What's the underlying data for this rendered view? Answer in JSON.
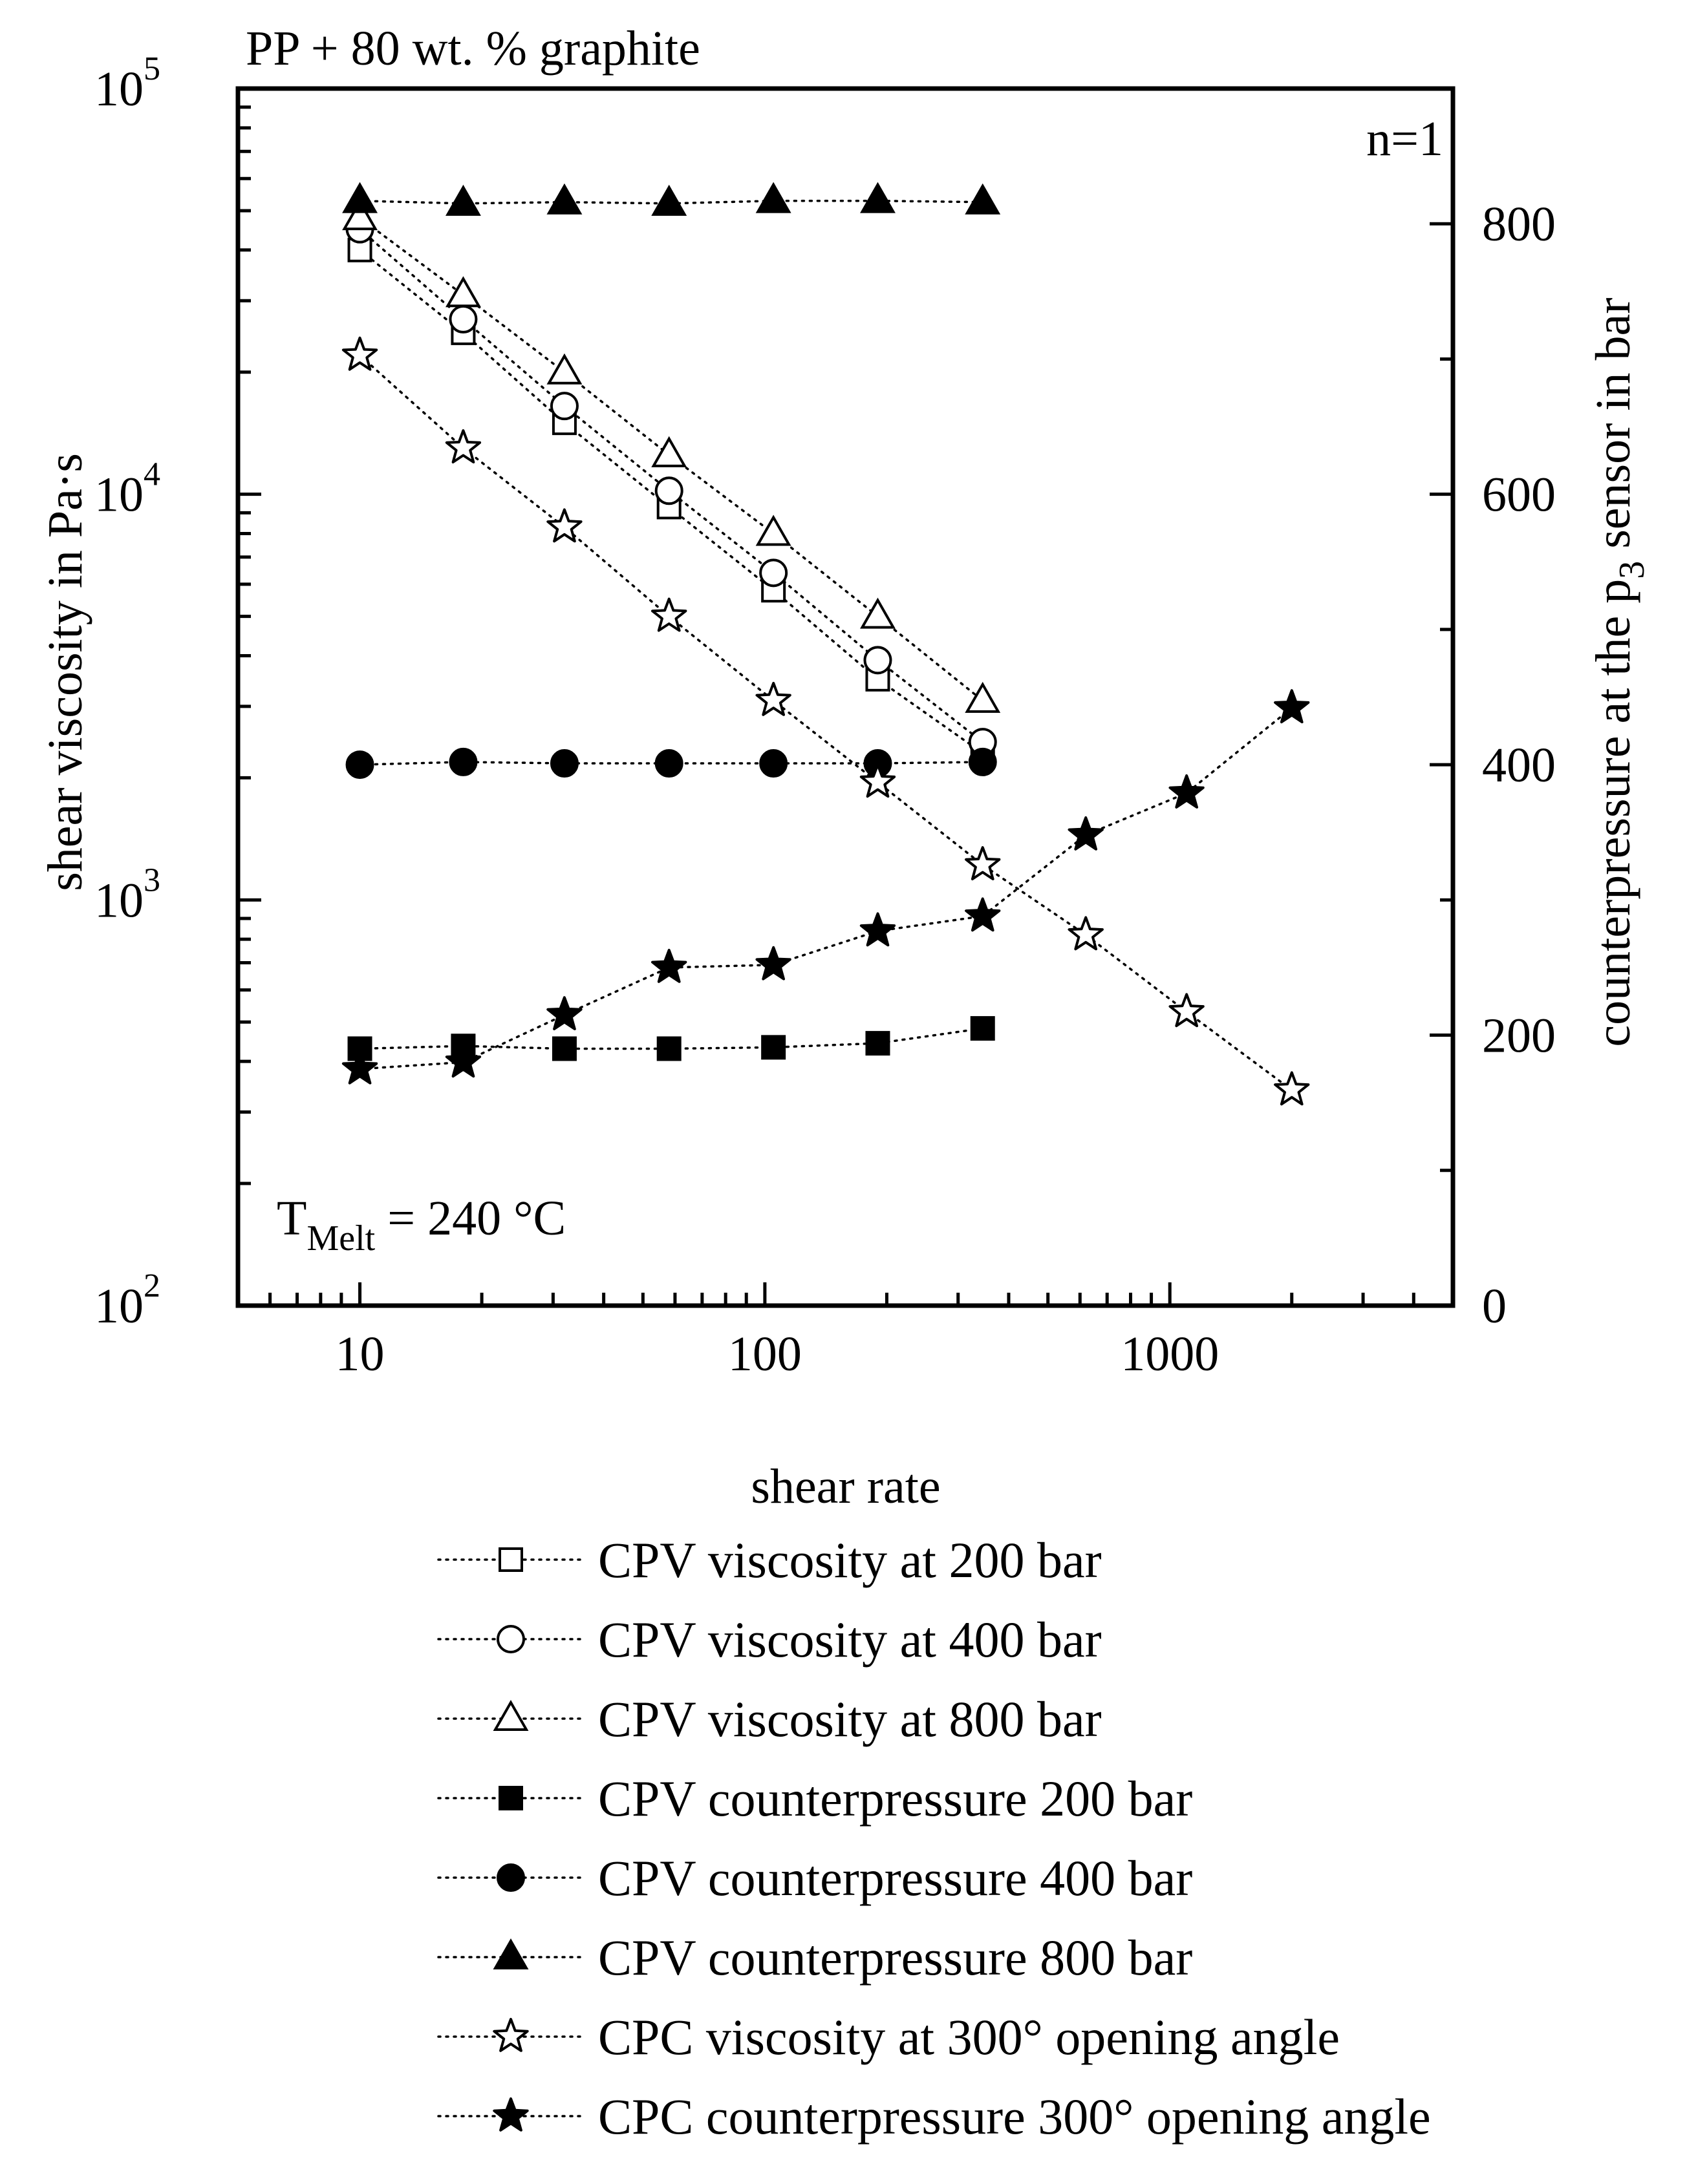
{
  "chart_data": {
    "type": "scatter",
    "title": "PP + 80 wt. % graphite",
    "xlabel": "shear rate",
    "ylabel_left": "shear viscosity in Pa·s",
    "ylabel_right": {
      "prefix": "counterpressure at the p",
      "subscript": "3",
      "suffix": " sensor in bar"
    },
    "x_scale": "log",
    "y_left_scale": "log",
    "xlim": [
      5,
      5000
    ],
    "ylim_left": [
      100,
      100000
    ],
    "ylim_right": [
      0,
      900
    ],
    "x_ticks": [
      10,
      100,
      1000
    ],
    "x_tick_labels": [
      "10",
      "100",
      "1000"
    ],
    "y_left_ticks": [
      {
        "value": 100,
        "base": "10",
        "exp": "2"
      },
      {
        "value": 1000,
        "base": "10",
        "exp": "3"
      },
      {
        "value": 10000,
        "base": "10",
        "exp": "4"
      },
      {
        "value": 100000,
        "base": "10",
        "exp": "5"
      }
    ],
    "y_right_ticks": [
      0,
      200,
      400,
      600,
      800
    ],
    "y_right_tick_labels": [
      "0",
      "200",
      "400",
      "600",
      "800"
    ],
    "annotations": {
      "n_label": "n=1",
      "temp": {
        "T": "T",
        "sub": "Melt",
        "rest": " = 240 °C"
      }
    },
    "grid": false,
    "legend_position": "bottom",
    "series": [
      {
        "name": "CPV viscosity at 200 bar",
        "axis": "left",
        "marker": "square",
        "filled": false,
        "x": [
          10,
          18,
          32,
          58,
          105,
          190,
          345
        ],
        "y": [
          40000,
          25000,
          15000,
          9300,
          5800,
          3500,
          2300
        ]
      },
      {
        "name": "CPV viscosity at 400 bar",
        "axis": "left",
        "marker": "circle",
        "filled": false,
        "x": [
          10,
          18,
          32,
          58,
          105,
          190,
          345
        ],
        "y": [
          45000,
          27000,
          16500,
          10200,
          6400,
          3900,
          2450
        ]
      },
      {
        "name": "CPV viscosity at 800 bar",
        "axis": "left",
        "marker": "triangle",
        "filled": false,
        "x": [
          10,
          18,
          32,
          58,
          105,
          190,
          345
        ],
        "y": [
          48000,
          31000,
          20000,
          12500,
          8000,
          5000,
          3100
        ]
      },
      {
        "name": "CPV counterpressure 200 bar",
        "axis": "right",
        "marker": "square",
        "filled": true,
        "x": [
          10,
          18,
          32,
          58,
          105,
          190,
          345
        ],
        "y": [
          190,
          192,
          190,
          190,
          191,
          194,
          205
        ]
      },
      {
        "name": "CPV counterpressure 400 bar",
        "axis": "right",
        "marker": "circle",
        "filled": true,
        "x": [
          10,
          18,
          32,
          58,
          105,
          190,
          345
        ],
        "y": [
          400,
          402,
          401,
          401,
          401,
          401,
          402
        ]
      },
      {
        "name": "CPV counterpressure 800 bar",
        "axis": "right",
        "marker": "triangle",
        "filled": true,
        "x": [
          10,
          18,
          32,
          58,
          105,
          190,
          345
        ],
        "y": [
          817,
          815,
          816,
          815,
          817,
          817,
          816
        ]
      },
      {
        "name": "CPC viscosity at 300° opening angle",
        "axis": "left",
        "marker": "star",
        "filled": false,
        "x": [
          10,
          18,
          32,
          58,
          105,
          190,
          345,
          620,
          1100,
          2000
        ],
        "y": [
          22000,
          13000,
          8300,
          5000,
          3100,
          1950,
          1220,
          820,
          530,
          340
        ]
      },
      {
        "name": "CPC counterpressure 300° opening angle",
        "axis": "right",
        "marker": "star",
        "filled": true,
        "x": [
          10,
          18,
          32,
          58,
          105,
          190,
          345,
          620,
          1100,
          2000
        ],
        "y": [
          175,
          180,
          215,
          250,
          252,
          277,
          288,
          348,
          379,
          442
        ]
      }
    ]
  }
}
